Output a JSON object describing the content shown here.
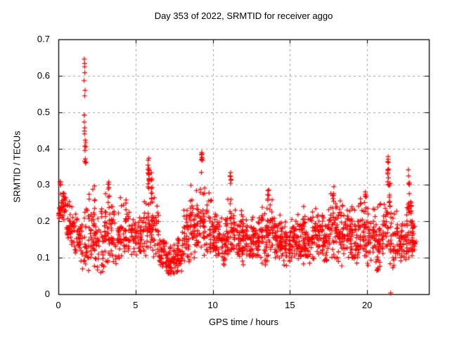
{
  "chart_data": {
    "type": "scatter",
    "title": "Day 353 of 2022, SRMTID for receiver aggo",
    "xlabel": "GPS time / hours",
    "ylabel": "SRMTID / TECUs",
    "xlim": [
      0,
      24
    ],
    "ylim": [
      0,
      0.7
    ],
    "xticks": [
      0,
      5,
      10,
      15,
      20
    ],
    "xtick_labels": [
      "0",
      "5",
      "10",
      "15",
      "20"
    ],
    "yticks": [
      0,
      0.1,
      0.2,
      0.3,
      0.4,
      0.5,
      0.6,
      0.7
    ],
    "ytick_labels": [
      "0",
      "0.1",
      "0.2",
      "0.3",
      "0.4",
      "0.5",
      "0.6",
      "0.7"
    ],
    "grid": true,
    "grid_style": "dashed",
    "legend": "none",
    "marker": "plus",
    "marker_size_px": 7,
    "marker_color": "#ff0000",
    "axis_color": "#000000",
    "grid_color": "#9f9f9f",
    "background_color": "#ffffff",
    "series": [
      {
        "name": "SRMTID",
        "bands_format": [
          "x_start_h",
          "x_end_h",
          "y_min_TECU",
          "y_max_TECU",
          "approx_count"
        ],
        "bands": [
          [
            0.0,
            0.5,
            0.19,
            0.31,
            42
          ],
          [
            0.5,
            1.0,
            0.11,
            0.3,
            38
          ],
          [
            1.0,
            1.5,
            0.08,
            0.26,
            34
          ],
          [
            1.5,
            2.0,
            0.05,
            0.3,
            38
          ],
          [
            2.0,
            2.5,
            0.06,
            0.31,
            42
          ],
          [
            2.5,
            3.0,
            0.05,
            0.27,
            38
          ],
          [
            3.0,
            3.5,
            0.08,
            0.3,
            42
          ],
          [
            3.5,
            4.0,
            0.07,
            0.26,
            38
          ],
          [
            4.0,
            4.5,
            0.09,
            0.29,
            38
          ],
          [
            4.5,
            5.0,
            0.08,
            0.24,
            36
          ],
          [
            5.0,
            5.5,
            0.09,
            0.23,
            36
          ],
          [
            5.5,
            6.0,
            0.1,
            0.28,
            34
          ],
          [
            6.0,
            6.5,
            0.08,
            0.28,
            38
          ],
          [
            6.5,
            7.0,
            0.05,
            0.18,
            36
          ],
          [
            7.0,
            7.5,
            0.045,
            0.15,
            40
          ],
          [
            7.5,
            8.0,
            0.05,
            0.18,
            40
          ],
          [
            8.0,
            8.5,
            0.07,
            0.26,
            40
          ],
          [
            8.5,
            9.0,
            0.09,
            0.31,
            44
          ],
          [
            9.0,
            9.5,
            0.1,
            0.32,
            44
          ],
          [
            9.5,
            10.0,
            0.09,
            0.31,
            44
          ],
          [
            10.0,
            10.5,
            0.09,
            0.26,
            42
          ],
          [
            10.5,
            11.0,
            0.07,
            0.24,
            42
          ],
          [
            11.0,
            11.5,
            0.09,
            0.3,
            42
          ],
          [
            11.5,
            12.0,
            0.07,
            0.26,
            42
          ],
          [
            12.0,
            12.5,
            0.09,
            0.23,
            44
          ],
          [
            12.5,
            13.0,
            0.09,
            0.22,
            44
          ],
          [
            13.0,
            13.5,
            0.07,
            0.26,
            42
          ],
          [
            13.5,
            14.0,
            0.09,
            0.28,
            42
          ],
          [
            14.0,
            14.5,
            0.09,
            0.23,
            42
          ],
          [
            14.5,
            15.0,
            0.07,
            0.21,
            42
          ],
          [
            15.0,
            15.5,
            0.09,
            0.22,
            42
          ],
          [
            15.5,
            16.0,
            0.07,
            0.25,
            42
          ],
          [
            16.0,
            16.5,
            0.07,
            0.23,
            42
          ],
          [
            16.5,
            17.0,
            0.09,
            0.26,
            42
          ],
          [
            17.0,
            17.5,
            0.07,
            0.27,
            42
          ],
          [
            17.5,
            18.0,
            0.09,
            0.3,
            40
          ],
          [
            18.0,
            18.5,
            0.07,
            0.28,
            40
          ],
          [
            18.5,
            19.0,
            0.09,
            0.26,
            40
          ],
          [
            19.0,
            19.5,
            0.07,
            0.27,
            40
          ],
          [
            19.5,
            20.0,
            0.09,
            0.28,
            40
          ],
          [
            20.0,
            20.5,
            0.07,
            0.27,
            40
          ],
          [
            20.5,
            21.0,
            0.05,
            0.26,
            40
          ],
          [
            21.0,
            21.5,
            0.1,
            0.27,
            36
          ],
          [
            21.5,
            22.0,
            0.05,
            0.26,
            34
          ],
          [
            22.0,
            22.5,
            0.08,
            0.25,
            36
          ],
          [
            22.5,
            23.05,
            0.08,
            0.25,
            44
          ],
          [
            23.0,
            23.1,
            0.1,
            0.21,
            8
          ]
        ],
        "spike_columns_format": [
          "x_h",
          "y_min_TECU",
          "y_max_TECU",
          "approx_count"
        ],
        "spike_columns": [
          [
            0.15,
            0.29,
            0.315,
            4
          ],
          [
            1.68,
            0.36,
            0.5,
            7
          ],
          [
            1.7,
            0.52,
            0.65,
            7
          ],
          [
            1.75,
            0.36,
            0.44,
            8
          ],
          [
            3.25,
            0.26,
            0.31,
            6
          ],
          [
            5.85,
            0.28,
            0.375,
            20
          ],
          [
            6.05,
            0.26,
            0.335,
            10
          ],
          [
            9.28,
            0.33,
            0.392,
            9
          ],
          [
            11.15,
            0.3,
            0.345,
            6
          ],
          [
            13.6,
            0.25,
            0.3,
            6
          ],
          [
            17.8,
            0.26,
            0.3,
            5
          ],
          [
            19.9,
            0.25,
            0.29,
            5
          ],
          [
            21.35,
            0.3,
            0.386,
            12
          ],
          [
            21.45,
            0.24,
            0.315,
            10
          ],
          [
            22.7,
            0.2,
            0.365,
            14
          ],
          [
            22.85,
            0.22,
            0.26,
            8
          ]
        ],
        "extra_points": [
          [
            21.52,
            0.003
          ]
        ]
      }
    ]
  }
}
